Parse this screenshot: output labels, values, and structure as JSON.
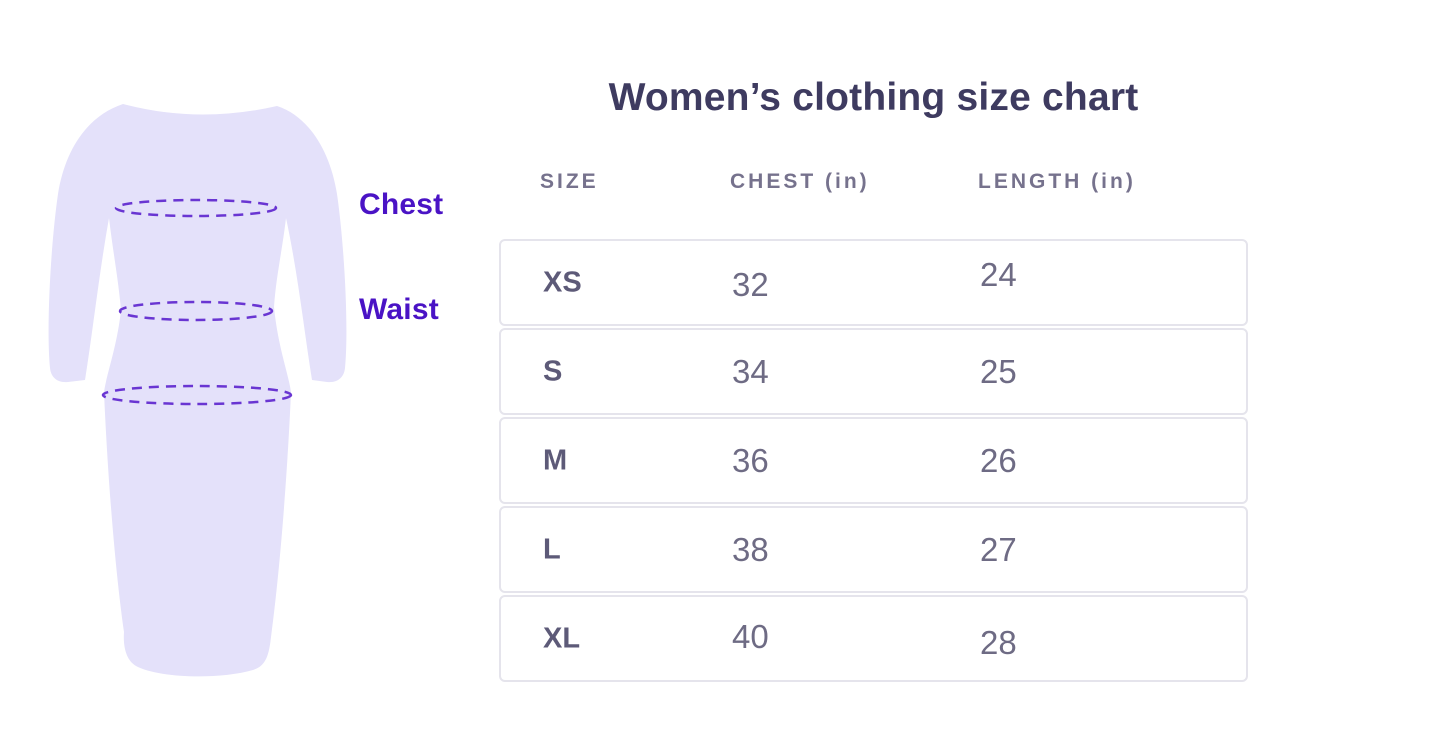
{
  "title": "Women’s clothing size chart",
  "diagram": {
    "chest_label": "Chest",
    "waist_label": "Waist",
    "dress_fill": "#e4e1fa",
    "measure_line_color": "#6935d2",
    "label_color": "#4a13c5",
    "measurement_lines": [
      "chest",
      "waist",
      "hip"
    ]
  },
  "table": {
    "headers": [
      {
        "label": "SIZE"
      },
      {
        "label": "CHEST (in)"
      },
      {
        "label": "LENGTH (in)"
      }
    ],
    "rows": [
      {
        "size": "XS",
        "chest": "32",
        "length": "24"
      },
      {
        "size": "S",
        "chest": "34",
        "length": "25"
      },
      {
        "size": "M",
        "chest": "36",
        "length": "26"
      },
      {
        "size": "L",
        "chest": "38",
        "length": "27"
      },
      {
        "size": "XL",
        "chest": "40",
        "length": "28"
      }
    ]
  },
  "chart_data": {
    "type": "table",
    "title": "Women’s clothing size chart",
    "columns": [
      "SIZE",
      "CHEST (in)",
      "LENGTH (in)"
    ],
    "rows": [
      [
        "XS",
        32,
        24
      ],
      [
        "S",
        34,
        25
      ],
      [
        "M",
        36,
        26
      ],
      [
        "L",
        38,
        27
      ],
      [
        "XL",
        40,
        28
      ]
    ],
    "units": "inches"
  },
  "colors": {
    "title": "#3e3b60",
    "column_header": "#76728d",
    "size_label": "#5d5a78",
    "value": "#6e6b84",
    "row_border": "#e5e4ec",
    "background": "#ffffff"
  }
}
